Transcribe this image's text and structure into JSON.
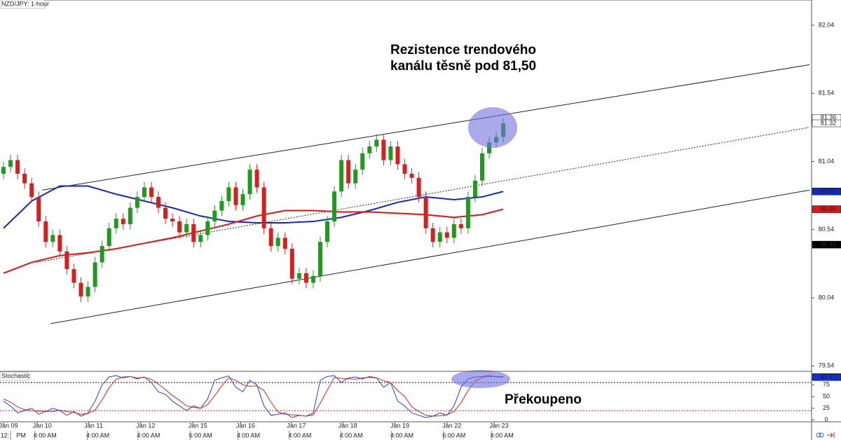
{
  "chart_data": {
    "type": "candlestick",
    "title": "NZD/JPY: 1-hour",
    "up_color": "#1e9a1e",
    "down_color": "#d42020",
    "candles": {
      "open": [
        80.95,
        81.0,
        81.05,
        80.95,
        80.88,
        80.78,
        80.6,
        80.45,
        80.5,
        80.38,
        80.25,
        80.15,
        80.05,
        80.12,
        80.3,
        80.42,
        80.55,
        80.62,
        80.58,
        80.7,
        80.78,
        80.85,
        80.78,
        80.7,
        80.62,
        80.6,
        80.52,
        80.58,
        80.45,
        80.5,
        80.6,
        80.68,
        80.75,
        80.85,
        80.72,
        80.8,
        80.98,
        80.85,
        80.55,
        80.42,
        80.48,
        80.4,
        80.18,
        80.22,
        80.15,
        80.2,
        80.45,
        80.6,
        80.82,
        81.05,
        80.88,
        80.98,
        81.1,
        81.15,
        81.2,
        81.05,
        81.15,
        81.02,
        80.95,
        80.92,
        80.78,
        80.55,
        80.45,
        80.52,
        80.48,
        80.58,
        80.55,
        80.78,
        80.9,
        81.1,
        81.18,
        81.22
      ],
      "high": [
        81.04,
        81.09,
        81.09,
        80.99,
        80.92,
        80.82,
        80.64,
        80.54,
        80.54,
        80.42,
        80.29,
        80.19,
        80.16,
        80.34,
        80.46,
        80.59,
        80.66,
        80.66,
        80.74,
        80.82,
        80.89,
        80.89,
        80.82,
        80.74,
        80.66,
        80.64,
        80.62,
        80.62,
        80.54,
        80.64,
        80.72,
        80.79,
        80.89,
        80.89,
        80.84,
        81.02,
        81.02,
        80.89,
        80.59,
        80.52,
        80.52,
        80.44,
        80.26,
        80.26,
        80.24,
        80.49,
        80.64,
        80.86,
        81.09,
        81.09,
        81.02,
        81.14,
        81.19,
        81.24,
        81.24,
        81.19,
        81.19,
        81.06,
        80.99,
        80.96,
        80.82,
        80.59,
        80.56,
        80.56,
        80.62,
        80.62,
        80.82,
        80.94,
        81.14,
        81.22,
        81.26,
        81.36
      ],
      "low": [
        80.91,
        80.96,
        80.91,
        80.84,
        80.74,
        80.56,
        80.41,
        80.41,
        80.34,
        80.21,
        80.11,
        80.01,
        80.01,
        80.08,
        80.26,
        80.38,
        80.51,
        80.54,
        80.54,
        80.66,
        80.74,
        80.74,
        80.66,
        80.58,
        80.56,
        80.48,
        80.48,
        80.41,
        80.41,
        80.46,
        80.56,
        80.64,
        80.71,
        80.68,
        80.68,
        80.76,
        80.81,
        80.51,
        80.38,
        80.38,
        80.36,
        80.14,
        80.14,
        80.11,
        80.11,
        80.16,
        80.41,
        80.56,
        80.78,
        80.84,
        80.84,
        80.94,
        81.06,
        81.11,
        81.01,
        81.01,
        80.98,
        80.91,
        80.88,
        80.74,
        80.51,
        80.41,
        80.41,
        80.44,
        80.44,
        80.51,
        80.51,
        80.74,
        80.86,
        81.06,
        81.14,
        81.18
      ],
      "close": [
        81.0,
        81.05,
        80.95,
        80.88,
        80.78,
        80.6,
        80.45,
        80.5,
        80.38,
        80.25,
        80.15,
        80.05,
        80.12,
        80.3,
        80.42,
        80.55,
        80.62,
        80.58,
        80.7,
        80.78,
        80.85,
        80.78,
        80.7,
        80.62,
        80.6,
        80.52,
        80.58,
        80.45,
        80.5,
        80.6,
        80.68,
        80.75,
        80.85,
        80.72,
        80.8,
        80.98,
        80.85,
        80.55,
        80.42,
        80.48,
        80.4,
        80.18,
        80.22,
        80.15,
        80.2,
        80.45,
        80.6,
        80.82,
        81.05,
        80.88,
        80.98,
        81.1,
        81.15,
        81.2,
        81.05,
        81.15,
        81.02,
        80.95,
        80.92,
        80.78,
        80.55,
        80.45,
        80.52,
        80.48,
        80.58,
        80.55,
        80.78,
        80.9,
        81.1,
        81.18,
        81.22,
        81.32
      ]
    },
    "xlim": [
      -0.5,
      114.8
    ],
    "xticks": [
      {
        "value": 0.7,
        "label": "Jan 09"
      },
      {
        "value": 5.5,
        "label": "Jan 10"
      },
      {
        "value": 12.8,
        "label": "Jan 11"
      },
      {
        "value": 20.2,
        "label": "Jan 12"
      },
      {
        "value": 27.6,
        "label": "Jan 15"
      },
      {
        "value": 34.4,
        "label": "Jan 16"
      },
      {
        "value": 41.6,
        "label": "Jan 17"
      },
      {
        "value": 48.9,
        "label": "Jan 18"
      },
      {
        "value": 56.3,
        "label": "Jan 19"
      },
      {
        "value": 63.7,
        "label": "Jan 22"
      },
      {
        "value": 70.4,
        "label": "Jan 23"
      }
    ],
    "xticks_time": [
      {
        "value": 0.2,
        "label": "12:"
      },
      {
        "value": 2.5,
        "label": "PM"
      },
      {
        "value": 5.9,
        "label": "4:00 AM"
      },
      {
        "value": 13.4,
        "label": "4:00 AM"
      },
      {
        "value": 20.6,
        "label": "4:00 AM"
      },
      {
        "value": 28.0,
        "label": "6:00 AM"
      },
      {
        "value": 34.8,
        "label": "4:00 AM"
      },
      {
        "value": 42.1,
        "label": "4:00 AM"
      },
      {
        "value": 49.4,
        "label": "4:00 AM"
      },
      {
        "value": 56.6,
        "label": "4:00 AM"
      },
      {
        "value": 64.0,
        "label": "6:00 AM"
      },
      {
        "value": 70.8,
        "label": "4:00 AM"
      }
    ],
    "ylim": [
      79.5,
      82.225
    ],
    "yticks": [
      79.54,
      80.04,
      80.54,
      81.04,
      81.54,
      82.04
    ],
    "overlays": [
      {
        "color": "#1428c8",
        "x": [
          0,
          4,
          8,
          12,
          16,
          20,
          24,
          28,
          32,
          36,
          40,
          44,
          48,
          52,
          56,
          60,
          64,
          68,
          71
        ],
        "values": [
          80.55,
          80.75,
          80.86,
          80.86,
          80.8,
          80.75,
          80.7,
          80.64,
          80.6,
          80.59,
          80.59,
          80.6,
          80.63,
          80.68,
          80.74,
          80.78,
          80.76,
          80.78,
          80.82
        ]
      },
      {
        "color": "#e01414",
        "x": [
          0,
          4,
          8,
          12,
          16,
          20,
          24,
          28,
          32,
          36,
          40,
          44,
          48,
          52,
          56,
          60,
          64,
          68,
          71
        ],
        "values": [
          80.22,
          80.3,
          80.35,
          80.37,
          80.4,
          80.44,
          80.48,
          80.53,
          80.58,
          80.64,
          80.68,
          80.68,
          80.67,
          80.67,
          80.66,
          80.65,
          80.63,
          80.65,
          80.69
        ]
      }
    ],
    "trendlines": [
      {
        "x": [
          5.5,
          114.5
        ],
        "values": [
          80.83,
          81.75
        ],
        "dashed": false
      },
      {
        "x": [
          6.7,
          114.5
        ],
        "values": [
          79.85,
          80.83
        ],
        "dashed": false
      },
      {
        "x": [
          4.7,
          114.5
        ],
        "values": [
          80.3,
          81.29
        ],
        "dashed": true
      }
    ],
    "price_tags": [
      {
        "value": 81.36,
        "color": "#ffffff",
        "text_color": "#000000"
      },
      {
        "value": 81.32,
        "color": "#ffffff",
        "text_color": "#000000"
      },
      {
        "value": 80.82,
        "color": "#1428c8",
        "text_color": "#ffffff"
      },
      {
        "value": 80.69,
        "color": "#e01414",
        "text_color": "#ffffff"
      },
      {
        "value": 80.43,
        "color": "#000000",
        "text_color": "#ffffff"
      }
    ],
    "annotations": [
      {
        "lines": [
          "Rezistence trendového",
          "kanálu těsně pod 81,50"
        ]
      },
      {
        "lines": [
          "Překoupeno"
        ]
      }
    ],
    "indicator": {
      "title": "Stochastic",
      "ylim": [
        -4,
        104
      ],
      "yticks": [
        0,
        25,
        50,
        75
      ],
      "levels": [
        {
          "value": 80,
          "color": "#000000"
        },
        {
          "value": 20,
          "color": "#e01414"
        }
      ],
      "series": [
        {
          "color": "#2040e0",
          "values": [
            40,
            30,
            15,
            20,
            25,
            12,
            18,
            25,
            20,
            10,
            18,
            8,
            15,
            40,
            75,
            92,
            95,
            90,
            93,
            88,
            92,
            80,
            60,
            55,
            40,
            30,
            20,
            30,
            25,
            45,
            85,
            90,
            94,
            70,
            60,
            85,
            75,
            30,
            10,
            12,
            15,
            5,
            10,
            8,
            15,
            85,
            93,
            95,
            80,
            90,
            92,
            88,
            93,
            90,
            70,
            80,
            40,
            30,
            15,
            10,
            5,
            8,
            15,
            10,
            30,
            70,
            88,
            92,
            93,
            95,
            92,
            91.77
          ]
        },
        {
          "color": "#e02020",
          "values": [
            45,
            38,
            28,
            22,
            20,
            19,
            18,
            18,
            21,
            18,
            16,
            12,
            14,
            21,
            43,
            69,
            87,
            92,
            93,
            90,
            91,
            87,
            77,
            65,
            52,
            42,
            30,
            27,
            25,
            33,
            52,
            73,
            90,
            85,
            75,
            72,
            73,
            63,
            38,
            17,
            12,
            11,
            10,
            8,
            11,
            36,
            64,
            91,
            89,
            88,
            87,
            90,
            91,
            90,
            84,
            80,
            63,
            50,
            28,
            18,
            10,
            8,
            9,
            11,
            18,
            37,
            63,
            83,
            91,
            93,
            93,
            93
          ]
        }
      ],
      "tag": {
        "value": 91.77,
        "color": "#1030d0",
        "text_color": "#ffffff"
      }
    }
  }
}
